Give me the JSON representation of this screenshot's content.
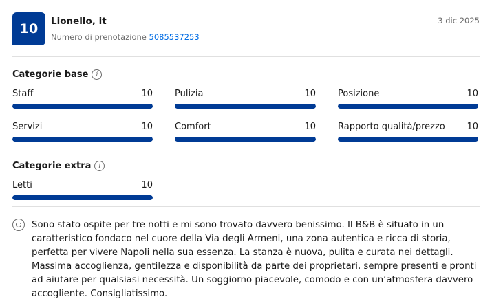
{
  "header": {
    "score": "10",
    "reviewer": "Lionello, it",
    "booking_label": "Numero di prenotazione",
    "booking_number": "5085537253",
    "date": "3 dic 2025"
  },
  "base": {
    "title": "Categorie base",
    "items": [
      {
        "label": "Staff",
        "score": "10",
        "fill": 1.0
      },
      {
        "label": "Pulizia",
        "score": "10",
        "fill": 1.0
      },
      {
        "label": "Posizione",
        "score": "10",
        "fill": 1.0
      },
      {
        "label": "Servizi",
        "score": "10",
        "fill": 1.0
      },
      {
        "label": "Comfort",
        "score": "10",
        "fill": 1.0
      },
      {
        "label": "Rapporto qualità/prezzo",
        "score": "10",
        "fill": 1.0
      }
    ]
  },
  "extra": {
    "title": "Categorie extra",
    "items": [
      {
        "label": "Letti",
        "score": "10",
        "fill": 1.0
      }
    ]
  },
  "review": {
    "icon": "smile-icon",
    "text": "Sono stato ospite per tre notti e mi sono trovato davvero benissimo. Il B&B è situato in un caratteristico fondaco nel cuore della Via degli Armeni, una zona autentica e ricca di storia, perfetta per vivere Napoli nella sua essenza. La stanza è nuova, pulita e curata nei dettagli. Massima accoglienza, gentilezza e disponibilità da parte dei proprietari, sempre presenti e pronti ad aiutare per qualsiasi necessità. Un soggiorno piacevole, comodo e con un’atmosfera davvero accogliente. Consigliatissimo."
  },
  "colors": {
    "accent": "#003b95",
    "link": "#006ce4"
  }
}
